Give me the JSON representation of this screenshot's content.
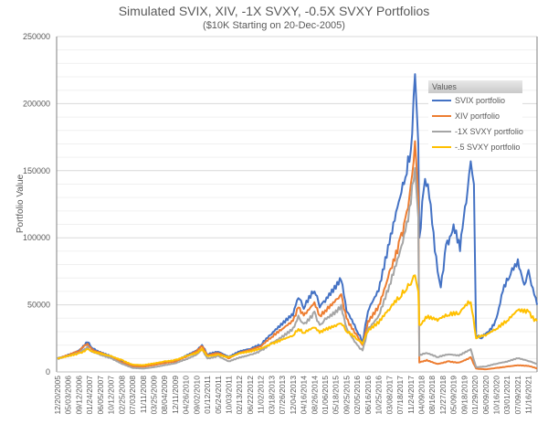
{
  "chart_data": {
    "type": "line",
    "title": "Simulated SVIX, XIV, -1X SVXY, -0.5X SVXY Portfolios",
    "subtitle": "($10K Starting on 20-Dec-2005)",
    "xlabel": "",
    "ylabel": "Portfolio Value",
    "ylim": [
      0,
      250000
    ],
    "yticks": [
      0,
      50000,
      100000,
      150000,
      200000,
      250000
    ],
    "grid": true,
    "legend_placement": "top-right",
    "legend_title": "Values",
    "x_note": "series x values are positions along the date axis measured in tick-label index units",
    "categories": [
      "12/20/2005",
      "05/03/2006",
      "09/12/2006",
      "01/24/2007",
      "06/05/2007",
      "10/12/2007",
      "02/25/2008",
      "07/03/2008",
      "11/11/2008",
      "03/25/2009",
      "08/04/2009",
      "12/11/2009",
      "04/26/2010",
      "09/02/2010",
      "01/12/2011",
      "05/24/2011",
      "10/03/2011",
      "02/13/2012",
      "06/22/2012",
      "11/02/2012",
      "03/18/2013",
      "07/26/2013",
      "12/04/2013",
      "04/16/2014",
      "08/26/2014",
      "01/06/2015",
      "05/18/2015",
      "09/25/2015",
      "02/05/2016",
      "06/16/2016",
      "10/25/2016",
      "03/08/2017",
      "07/18/2017",
      "11/24/2017",
      "04/09/2018",
      "08/16/2018",
      "12/27/2018",
      "05/09/2019",
      "09/18/2019",
      "01/29/2020",
      "06/09/2020",
      "10/16/2020",
      "03/01/2021",
      "07/09/2021",
      "11/16/2021"
    ],
    "x_max_index": 44.85,
    "series": [
      {
        "name": "SVIX portfolio",
        "color": "#4472C4",
        "points": [
          [
            0,
            10000
          ],
          [
            1,
            13000
          ],
          [
            2,
            16000
          ],
          [
            2.8,
            22000
          ],
          [
            3.2,
            18000
          ],
          [
            4,
            15000
          ],
          [
            5,
            12000
          ],
          [
            6,
            8000
          ],
          [
            7,
            5000
          ],
          [
            8,
            4500
          ],
          [
            9,
            5500
          ],
          [
            10,
            7000
          ],
          [
            11,
            8000
          ],
          [
            12,
            12000
          ],
          [
            13,
            16000
          ],
          [
            13.5,
            20000
          ],
          [
            14,
            13000
          ],
          [
            15,
            15000
          ],
          [
            16,
            11000
          ],
          [
            17,
            15000
          ],
          [
            18,
            17000
          ],
          [
            19,
            20000
          ],
          [
            20,
            28000
          ],
          [
            21,
            35000
          ],
          [
            22,
            42000
          ],
          [
            22.5,
            55000
          ],
          [
            23,
            47000
          ],
          [
            24,
            60000
          ],
          [
            24.5,
            48000
          ],
          [
            25,
            52000
          ],
          [
            26,
            62000
          ],
          [
            26.5,
            68000
          ],
          [
            27,
            45000
          ],
          [
            28,
            30000
          ],
          [
            28.5,
            22000
          ],
          [
            29,
            45000
          ],
          [
            30,
            60000
          ],
          [
            31,
            95000
          ],
          [
            32,
            130000
          ],
          [
            32.5,
            145000
          ],
          [
            33,
            165000
          ],
          [
            33.4,
            222000
          ],
          [
            33.7,
            170000
          ],
          [
            33.8,
            100000
          ],
          [
            34.2,
            135000
          ],
          [
            34.6,
            140000
          ],
          [
            35,
            110000
          ],
          [
            35.5,
            75000
          ],
          [
            35.8,
            63000
          ],
          [
            36.3,
            95000
          ],
          [
            37,
            110000
          ],
          [
            37.6,
            90000
          ],
          [
            38.3,
            135000
          ],
          [
            38.6,
            157000
          ],
          [
            38.9,
            140000
          ],
          [
            39.1,
            27000
          ],
          [
            39.6,
            25000
          ],
          [
            40.3,
            30000
          ],
          [
            41,
            40000
          ],
          [
            41.6,
            60000
          ],
          [
            42.2,
            70000
          ],
          [
            43,
            84000
          ],
          [
            43.6,
            65000
          ],
          [
            44,
            76000
          ],
          [
            44.8,
            50000
          ]
        ]
      },
      {
        "name": "XIV portfolio",
        "color": "#ED7D31",
        "points": [
          [
            0,
            10000
          ],
          [
            1,
            12500
          ],
          [
            2,
            15500
          ],
          [
            2.8,
            21000
          ],
          [
            3.2,
            17000
          ],
          [
            4,
            14000
          ],
          [
            5,
            11000
          ],
          [
            6,
            7000
          ],
          [
            7,
            4000
          ],
          [
            8,
            3800
          ],
          [
            9,
            5000
          ],
          [
            10,
            6500
          ],
          [
            11,
            7500
          ],
          [
            12,
            11000
          ],
          [
            13,
            15000
          ],
          [
            13.5,
            19000
          ],
          [
            14,
            12000
          ],
          [
            15,
            14000
          ],
          [
            16,
            10000
          ],
          [
            17,
            14000
          ],
          [
            18,
            16000
          ],
          [
            19,
            19000
          ],
          [
            20,
            26000
          ],
          [
            21,
            32000
          ],
          [
            22,
            38000
          ],
          [
            22.5,
            48000
          ],
          [
            23,
            42000
          ],
          [
            24,
            52000
          ],
          [
            24.5,
            42000
          ],
          [
            25,
            46000
          ],
          [
            26,
            54000
          ],
          [
            26.5,
            58000
          ],
          [
            27,
            40000
          ],
          [
            28,
            27000
          ],
          [
            28.5,
            20000
          ],
          [
            29,
            38000
          ],
          [
            30,
            50000
          ],
          [
            31,
            75000
          ],
          [
            32,
            100000
          ],
          [
            32.5,
            115000
          ],
          [
            33,
            140000
          ],
          [
            33.4,
            172000
          ],
          [
            33.7,
            130000
          ],
          [
            33.8,
            7000
          ],
          [
            34.5,
            9000
          ],
          [
            35.5,
            6000
          ],
          [
            36.5,
            8000
          ],
          [
            37.5,
            7000
          ],
          [
            38.6,
            11000
          ],
          [
            39.1,
            2500
          ],
          [
            40,
            2000
          ],
          [
            41,
            3000
          ],
          [
            42,
            4000
          ],
          [
            43,
            5000
          ],
          [
            44,
            4500
          ],
          [
            44.8,
            2500
          ]
        ]
      },
      {
        "name": "-1X SVXY portfolio",
        "color": "#A5A5A5",
        "points": [
          [
            0,
            10000
          ],
          [
            1,
            11500
          ],
          [
            2,
            14000
          ],
          [
            2.8,
            19000
          ],
          [
            3.2,
            15000
          ],
          [
            4,
            12500
          ],
          [
            5,
            10000
          ],
          [
            6,
            6000
          ],
          [
            7,
            3000
          ],
          [
            8,
            2500
          ],
          [
            9,
            3500
          ],
          [
            10,
            5000
          ],
          [
            11,
            6500
          ],
          [
            12,
            9500
          ],
          [
            13,
            13000
          ],
          [
            13.5,
            17000
          ],
          [
            14,
            10000
          ],
          [
            15,
            12000
          ],
          [
            16,
            8000
          ],
          [
            17,
            11000
          ],
          [
            18,
            13000
          ],
          [
            19,
            16000
          ],
          [
            20,
            22000
          ],
          [
            21,
            27000
          ],
          [
            22,
            33000
          ],
          [
            22.5,
            42000
          ],
          [
            23,
            36000
          ],
          [
            24,
            45000
          ],
          [
            24.5,
            35000
          ],
          [
            25,
            40000
          ],
          [
            26,
            46000
          ],
          [
            26.5,
            50000
          ],
          [
            27,
            33000
          ],
          [
            28,
            20000
          ],
          [
            28.5,
            16000
          ],
          [
            29,
            32000
          ],
          [
            30,
            42000
          ],
          [
            31,
            65000
          ],
          [
            32,
            90000
          ],
          [
            32.5,
            105000
          ],
          [
            33,
            125000
          ],
          [
            33.4,
            152000
          ],
          [
            33.7,
            115000
          ],
          [
            33.8,
            12000
          ],
          [
            34.5,
            14000
          ],
          [
            35.5,
            11000
          ],
          [
            36.5,
            13000
          ],
          [
            37.5,
            12000
          ],
          [
            38.6,
            17000
          ],
          [
            39.1,
            3500
          ],
          [
            40,
            4000
          ],
          [
            41,
            6000
          ],
          [
            42,
            7500
          ],
          [
            43,
            10000
          ],
          [
            44,
            8000
          ],
          [
            44.8,
            6000
          ]
        ]
      },
      {
        "name": "-.5 SVXY portfolio",
        "color": "#FFC000",
        "points": [
          [
            0,
            10000
          ],
          [
            1,
            12000
          ],
          [
            2,
            14000
          ],
          [
            2.8,
            17000
          ],
          [
            3.5,
            15000
          ],
          [
            5,
            12000
          ],
          [
            6,
            9000
          ],
          [
            7,
            5500
          ],
          [
            8,
            5200
          ],
          [
            9,
            6500
          ],
          [
            10,
            8000
          ],
          [
            11,
            9000
          ],
          [
            12,
            12000
          ],
          [
            13,
            14500
          ],
          [
            13.5,
            17500
          ],
          [
            14,
            12000
          ],
          [
            15,
            13000
          ],
          [
            16,
            11000
          ],
          [
            17,
            14000
          ],
          [
            18,
            15500
          ],
          [
            19,
            17500
          ],
          [
            20,
            21000
          ],
          [
            21,
            24000
          ],
          [
            22,
            27000
          ],
          [
            22.5,
            32000
          ],
          [
            23,
            29000
          ],
          [
            24,
            33000
          ],
          [
            24.5,
            29000
          ],
          [
            25,
            31000
          ],
          [
            26,
            34000
          ],
          [
            26.5,
            36000
          ],
          [
            27,
            30000
          ],
          [
            28,
            24000
          ],
          [
            28.5,
            21000
          ],
          [
            29,
            30000
          ],
          [
            30,
            36000
          ],
          [
            31,
            46000
          ],
          [
            32,
            55000
          ],
          [
            32.5,
            60000
          ],
          [
            33,
            65000
          ],
          [
            33.4,
            72000
          ],
          [
            33.7,
            60000
          ],
          [
            33.8,
            35000
          ],
          [
            34.5,
            40000
          ],
          [
            35.5,
            38000
          ],
          [
            36.5,
            42000
          ],
          [
            37.5,
            43000
          ],
          [
            38.6,
            52000
          ],
          [
            39.1,
            25000
          ],
          [
            40,
            27000
          ],
          [
            41,
            32000
          ],
          [
            42,
            38000
          ],
          [
            43,
            46000
          ],
          [
            44,
            45000
          ],
          [
            44.8,
            38000
          ]
        ]
      }
    ]
  }
}
